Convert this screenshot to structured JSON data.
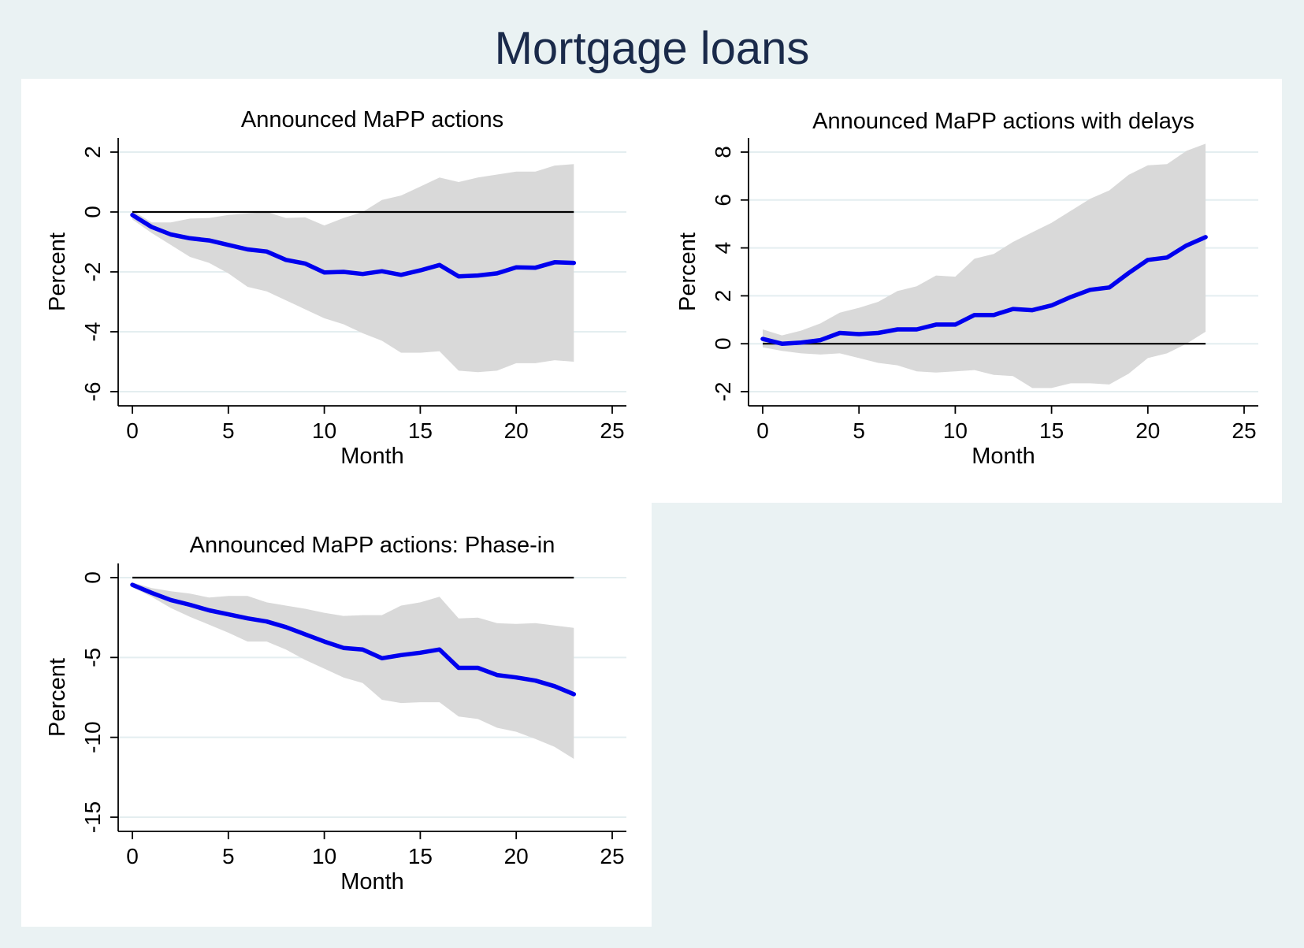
{
  "figure": {
    "title": "Mortgage loans"
  },
  "colors": {
    "line": "#0000ee",
    "band": "#d9d9d9",
    "zero": "#000000",
    "grid": "#e4eef0"
  },
  "chart_data": [
    {
      "type": "line",
      "title": "Announced MaPP actions",
      "xlabel": "Month",
      "ylabel": "Percent",
      "xlim": [
        0,
        25
      ],
      "ylim": [
        -6,
        2
      ],
      "xticks": [
        0,
        5,
        10,
        15,
        20,
        25
      ],
      "yticks": [
        -6,
        -4,
        -2,
        0,
        2
      ],
      "grid": true,
      "x": [
        0,
        1,
        2,
        3,
        4,
        5,
        6,
        7,
        8,
        9,
        10,
        11,
        12,
        13,
        14,
        15,
        16,
        17,
        18,
        19,
        20,
        21,
        22,
        23
      ],
      "series": [
        {
          "values": [
            -0.1,
            -0.5,
            -0.75,
            -0.88,
            -0.95,
            -1.1,
            -1.25,
            -1.32,
            -1.6,
            -1.72,
            -2.02,
            -2.0,
            -2.07,
            -1.98,
            -2.1,
            -1.95,
            -1.77,
            -2.15,
            -2.12,
            -2.05,
            -1.85,
            -1.86,
            -1.68,
            -1.7
          ]
        }
      ],
      "band": {
        "upper": [
          0.05,
          -0.35,
          -0.35,
          -0.22,
          -0.2,
          -0.1,
          -0.05,
          0.0,
          -0.2,
          -0.18,
          -0.45,
          -0.2,
          0.0,
          0.4,
          0.55,
          0.85,
          1.15,
          1.0,
          1.15,
          1.25,
          1.35,
          1.35,
          1.55,
          1.6
        ],
        "lower": [
          -0.25,
          -0.7,
          -1.1,
          -1.5,
          -1.7,
          -2.05,
          -2.5,
          -2.65,
          -2.95,
          -3.25,
          -3.55,
          -3.75,
          -4.05,
          -4.3,
          -4.7,
          -4.7,
          -4.65,
          -5.3,
          -5.35,
          -5.3,
          -5.05,
          -5.05,
          -4.95,
          -5.0
        ]
      },
      "zero_line": {
        "y": 0,
        "x": [
          0,
          23
        ]
      }
    },
    {
      "type": "line",
      "title": "Announced MaPP actions with delays",
      "xlabel": "Month",
      "ylabel": "Percent",
      "xlim": [
        0,
        25
      ],
      "ylim": [
        -2,
        8
      ],
      "xticks": [
        0,
        5,
        10,
        15,
        20,
        25
      ],
      "yticks": [
        -2,
        0,
        2,
        4,
        6,
        8
      ],
      "grid": true,
      "x": [
        0,
        1,
        2,
        3,
        4,
        5,
        6,
        7,
        8,
        9,
        10,
        11,
        12,
        13,
        14,
        15,
        16,
        17,
        18,
        19,
        20,
        21,
        22,
        23
      ],
      "series": [
        {
          "values": [
            0.2,
            0.0,
            0.05,
            0.15,
            0.45,
            0.4,
            0.45,
            0.6,
            0.6,
            0.8,
            0.8,
            1.2,
            1.2,
            1.45,
            1.4,
            1.6,
            1.95,
            2.25,
            2.35,
            2.95,
            3.5,
            3.6,
            4.1,
            4.45
          ]
        }
      ],
      "band": {
        "upper": [
          0.6,
          0.35,
          0.55,
          0.85,
          1.3,
          1.5,
          1.75,
          2.2,
          2.4,
          2.85,
          2.8,
          3.55,
          3.75,
          4.25,
          4.65,
          5.05,
          5.55,
          6.05,
          6.4,
          7.05,
          7.45,
          7.5,
          8.05,
          8.35
        ],
        "lower": [
          -0.15,
          -0.3,
          -0.4,
          -0.45,
          -0.4,
          -0.6,
          -0.8,
          -0.9,
          -1.15,
          -1.2,
          -1.15,
          -1.1,
          -1.3,
          -1.35,
          -1.85,
          -1.85,
          -1.65,
          -1.65,
          -1.7,
          -1.25,
          -0.6,
          -0.4,
          0.0,
          0.5
        ]
      },
      "zero_line": {
        "y": 0,
        "x": [
          0,
          23
        ]
      }
    },
    {
      "type": "line",
      "title": "Announced MaPP actions: Phase-in",
      "xlabel": "Month",
      "ylabel": "Percent",
      "xlim": [
        0,
        25
      ],
      "ylim": [
        -15,
        0
      ],
      "xticks": [
        0,
        5,
        10,
        15,
        20,
        25
      ],
      "yticks": [
        -15,
        -10,
        -5,
        0
      ],
      "grid": true,
      "x": [
        0,
        1,
        2,
        3,
        4,
        5,
        6,
        7,
        8,
        9,
        10,
        11,
        12,
        13,
        14,
        15,
        16,
        17,
        18,
        19,
        20,
        21,
        22,
        23
      ],
      "series": [
        {
          "values": [
            -0.45,
            -0.95,
            -1.4,
            -1.7,
            -2.05,
            -2.3,
            -2.55,
            -2.75,
            -3.1,
            -3.55,
            -4.0,
            -4.4,
            -4.5,
            -5.05,
            -4.85,
            -4.7,
            -4.5,
            -5.65,
            -5.65,
            -6.1,
            -6.25,
            -6.45,
            -6.8,
            -7.3
          ]
        }
      ],
      "band": {
        "upper": [
          -0.3,
          -0.65,
          -0.85,
          -1.0,
          -1.25,
          -1.15,
          -1.15,
          -1.55,
          -1.75,
          -1.95,
          -2.2,
          -2.4,
          -2.35,
          -2.35,
          -1.75,
          -1.55,
          -1.2,
          -2.55,
          -2.5,
          -2.85,
          -2.9,
          -2.85,
          -3.0,
          -3.15
        ],
        "lower": [
          -0.6,
          -1.2,
          -1.9,
          -2.45,
          -2.95,
          -3.45,
          -4.0,
          -4.0,
          -4.5,
          -5.15,
          -5.7,
          -6.25,
          -6.6,
          -7.65,
          -7.85,
          -7.8,
          -7.8,
          -8.7,
          -8.85,
          -9.4,
          -9.65,
          -10.1,
          -10.6,
          -11.35
        ]
      },
      "zero_line": {
        "y": 0,
        "x": [
          0,
          23
        ]
      }
    }
  ]
}
